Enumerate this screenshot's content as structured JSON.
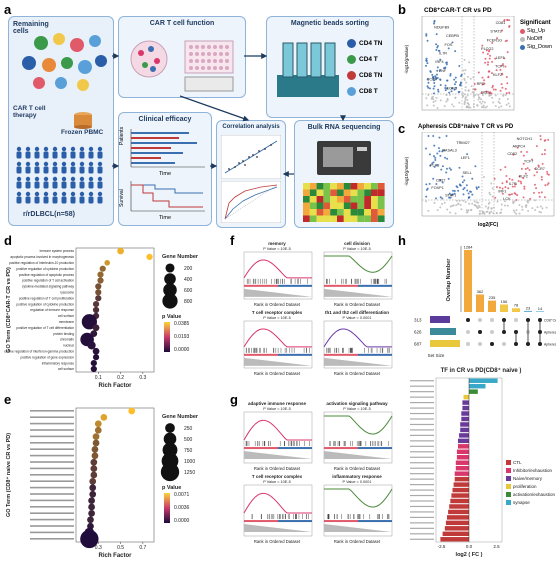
{
  "labels": {
    "a": "a",
    "b": "b",
    "c": "c",
    "d": "d",
    "e": "e",
    "f": "f",
    "g": "g",
    "h": "h"
  },
  "panel_a": {
    "remaining_cells": "Remaining cells",
    "car_t_therapy": "CAR T cell therapy",
    "frozen_pbmc": "Frozen PBMC",
    "cohort": "r/rDLBCL(n=58)",
    "car_t_function": "CAR T cell function",
    "magnetic_sorting": "Magnetic beads sorting",
    "clinical_efficacy": "Clinical efficacy",
    "correlation": "Correlation analysis",
    "bulk_rna": "Bulk RNA sequencing",
    "sorted_cells": [
      "CD4 TN",
      "CD4 T",
      "CD8 TN",
      "CD8 T"
    ],
    "time": "Time",
    "patients": "Patients",
    "survival": "Survival",
    "sorted_colors": [
      "#2a5ea8",
      "#3a9a4a",
      "#c03a3a",
      "#5aa0d8"
    ]
  },
  "panel_b": {
    "title": "CD8⁺CAR-T  CR vs PD",
    "ylabel": "-log10(pValue)",
    "legend_title": "Significant",
    "legend": [
      {
        "label": "Sig_Up",
        "color": "#e05a6a"
      },
      {
        "label": "NoDiff",
        "color": "#bbbbbb"
      },
      {
        "label": "Sig_Down",
        "color": "#3a6fb0"
      }
    ],
    "genes": [
      "CD81",
      "NDUFB9",
      "STAT3",
      "CEBPB",
      "FCER1G",
      "FOS",
      "PLCG2",
      "IL7R",
      "LEF1",
      "IRF4",
      "TCF7",
      "ZNF",
      "KLF2",
      "CCR7",
      "RPS",
      "EGR1",
      "SELL"
    ]
  },
  "panel_c": {
    "title": "Apheresis CD8⁺naive  T  CR vs PD",
    "ylabel": "-log10(pValue)",
    "xlabel": "log2(FC)",
    "genes": [
      "NOTCH1",
      "TRIM27",
      "ARPC4",
      "RASAL3",
      "CD52",
      "LEF1",
      "TCF7",
      "PLK3",
      "CCR7",
      "SELL",
      "KLF2",
      "CD27",
      "IL7R",
      "FOXP1",
      "IRF1",
      "STAT1",
      "LCK"
    ]
  },
  "panel_d": {
    "ylabel": "GO Term (CD8⁺CAR-T CR vs PD)",
    "xlabel": "Rich Factor",
    "size_title": "Gene Number",
    "size_ticks": [
      "200",
      "400",
      "600",
      "800"
    ],
    "color_title": "p Value",
    "color_ticks": [
      "0.0385",
      "0.0193",
      "0.0000"
    ],
    "terms": [
      "immune system process",
      "apoptotic process involved in morphogenesis",
      "positive regulation of interleukin-10 production",
      "positive regulation of cytokine production",
      "positive regulation of apoptotic process",
      "positive regulation of T cell activation",
      "cytokine-mediated signaling pathway",
      "lysosome",
      "positive regulation of T cell proliferation",
      "positive regulation of cytokine production",
      "regulation of immune response",
      "cell surface",
      "membrane",
      "positive regulation of T cell differentiation",
      "protein binding",
      "chromatin",
      "nucleus",
      "positive regulation of interferon-gamma production",
      "positive regulation of gene expression",
      "inflammatory response",
      "cell surface"
    ],
    "chart_data": {
      "type": "scatter",
      "xlim": [
        0,
        0.35
      ],
      "x_ticks": [
        "0.1",
        "0.2",
        "0.3"
      ],
      "points": [
        {
          "x": 0.2,
          "y": 21,
          "size": 80,
          "p": 0.035
        },
        {
          "x": 0.33,
          "y": 20,
          "size": 60,
          "p": 0.038
        },
        {
          "x": 0.14,
          "y": 19,
          "size": 40,
          "p": 0.03
        },
        {
          "x": 0.12,
          "y": 18,
          "size": 60,
          "p": 0.02
        },
        {
          "x": 0.11,
          "y": 17,
          "size": 60,
          "p": 0.02
        },
        {
          "x": 0.11,
          "y": 16,
          "size": 60,
          "p": 0.018
        },
        {
          "x": 0.1,
          "y": 15,
          "size": 60,
          "p": 0.015
        },
        {
          "x": 0.1,
          "y": 14,
          "size": 60,
          "p": 0.015
        },
        {
          "x": 0.1,
          "y": 13,
          "size": 60,
          "p": 0.01
        },
        {
          "x": 0.09,
          "y": 12,
          "size": 60,
          "p": 0.01
        },
        {
          "x": 0.09,
          "y": 11,
          "size": 60,
          "p": 0.008
        },
        {
          "x": 0.09,
          "y": 10,
          "size": 60,
          "p": 0.006
        },
        {
          "x": 0.06,
          "y": 9,
          "size": 800,
          "p": 0.001
        },
        {
          "x": 0.09,
          "y": 8,
          "size": 80,
          "p": 0.005
        },
        {
          "x": 0.08,
          "y": 7,
          "size": 80,
          "p": 0.003
        },
        {
          "x": 0.05,
          "y": 6,
          "size": 600,
          "p": 0.001
        },
        {
          "x": 0.07,
          "y": 5,
          "size": 150,
          "p": 0.002
        },
        {
          "x": 0.09,
          "y": 4,
          "size": 80,
          "p": 0.002
        },
        {
          "x": 0.09,
          "y": 3,
          "size": 60,
          "p": 0.001
        },
        {
          "x": 0.08,
          "y": 2,
          "size": 60,
          "p": 0.001
        },
        {
          "x": 0.08,
          "y": 1,
          "size": 60,
          "p": 0.001
        }
      ]
    }
  },
  "panel_e": {
    "ylabel": "GO Term (CD8⁺ naive CR vs PD)",
    "xlabel": "Rich Factor",
    "size_title": "Gene Number",
    "size_ticks": [
      "250",
      "500",
      "750",
      "1000",
      "1250"
    ],
    "color_title": "p Value",
    "color_ticks": [
      "0.0071",
      "0.0036",
      "0.0000"
    ],
    "chart_data": {
      "type": "scatter",
      "xlim": [
        0.1,
        0.8
      ],
      "x_ticks": [
        "0.3",
        "0.5",
        "0.7"
      ],
      "points": [
        {
          "x": 0.6,
          "y": 21,
          "size": 80,
          "p": 0.007
        },
        {
          "x": 0.35,
          "y": 20,
          "size": 80,
          "p": 0.006
        },
        {
          "x": 0.3,
          "y": 19,
          "size": 80,
          "p": 0.005
        },
        {
          "x": 0.3,
          "y": 18,
          "size": 80,
          "p": 0.004
        },
        {
          "x": 0.28,
          "y": 17,
          "size": 80,
          "p": 0.004
        },
        {
          "x": 0.28,
          "y": 16,
          "size": 80,
          "p": 0.003
        },
        {
          "x": 0.27,
          "y": 15,
          "size": 80,
          "p": 0.003
        },
        {
          "x": 0.27,
          "y": 14,
          "size": 80,
          "p": 0.003
        },
        {
          "x": 0.26,
          "y": 13,
          "size": 80,
          "p": 0.002
        },
        {
          "x": 0.26,
          "y": 12,
          "size": 80,
          "p": 0.002
        },
        {
          "x": 0.26,
          "y": 11,
          "size": 80,
          "p": 0.002
        },
        {
          "x": 0.25,
          "y": 10,
          "size": 80,
          "p": 0.002
        },
        {
          "x": 0.25,
          "y": 9,
          "size": 80,
          "p": 0.001
        },
        {
          "x": 0.25,
          "y": 8,
          "size": 80,
          "p": 0.001
        },
        {
          "x": 0.24,
          "y": 7,
          "size": 80,
          "p": 0.001
        },
        {
          "x": 0.24,
          "y": 6,
          "size": 80,
          "p": 0.001
        },
        {
          "x": 0.24,
          "y": 5,
          "size": 80,
          "p": 0.001
        },
        {
          "x": 0.23,
          "y": 4,
          "size": 80,
          "p": 0.001
        },
        {
          "x": 0.23,
          "y": 3,
          "size": 80,
          "p": 0.0005
        },
        {
          "x": 0.22,
          "y": 2,
          "size": 250,
          "p": 0.0003
        },
        {
          "x": 0.22,
          "y": 1,
          "size": 1250,
          "p": 0.0001
        }
      ]
    }
  },
  "panel_f": {
    "xlabel": "Rank in Ordered Dataset",
    "plots": [
      {
        "title": "memory",
        "p": "P Value = 10E-5",
        "color": "#d9366b"
      },
      {
        "title": "cell division",
        "p": "P Value = 10E-5",
        "color": "#4a8a3a"
      },
      {
        "title": "T cell receptor complex",
        "p": "P Value = 10E-5",
        "color": "#d9366b"
      },
      {
        "title": "th1 and th2 cell differentiation",
        "p": "P Value = 0.0001",
        "color": "#6a3aa8"
      }
    ]
  },
  "panel_g": {
    "xlabel": "Rank in Ordered Dataset",
    "plots": [
      {
        "title": "adaptive immune response",
        "p": "P Value = 10E-5",
        "color": "#d9366b"
      },
      {
        "title": "activation signaling pathway",
        "p": "P Value = 10E-5",
        "color": "#4a8a3a"
      },
      {
        "title": "T cell receptor complex",
        "p": "P Value = 10E-5",
        "color": "#d9366b"
      },
      {
        "title": "inflammatory response",
        "p": "P Value = 0.0001",
        "color": "#4a8a3a"
      }
    ]
  },
  "panel_h": {
    "upset_ylabel": "Overlap Number",
    "set_size_label": "Set Size",
    "bars": [
      1284,
      362,
      235,
      156,
      78,
      23,
      14
    ],
    "sets": [
      {
        "name": "CD8⁺CAR-T CR vs PD",
        "size": "313",
        "color": "#5a3a9a"
      },
      {
        "name": "Apheresis CD8⁺naive T CR vs PD",
        "size": "626",
        "color": "#3a8a9a"
      },
      {
        "name": "Apheresis CD8⁺CAR-T naive T CR vs PD",
        "size": "687",
        "color": "#e8c83a"
      }
    ],
    "tf_title": "TF in CR vs PD(CD8⁺ naive )",
    "tf_xlabel": "log2 ( FC )",
    "tf_xticks": [
      "-2.5",
      "0.0",
      "2.5"
    ],
    "tf_legend": [
      {
        "label": "CTL",
        "color": "#c03a3a"
      },
      {
        "label": "Inhibitor/exhaustion",
        "color": "#d9366b"
      },
      {
        "label": "Naive/memory",
        "color": "#6a3a9a"
      },
      {
        "label": "proliferation",
        "color": "#e8c83a"
      },
      {
        "label": "activation/exhaustion",
        "color": "#3a8a3a"
      },
      {
        "label": "synapse",
        "color": "#3aa8c8"
      }
    ],
    "tf_bars": [
      {
        "v": 2.6,
        "c": "#3aa8c8"
      },
      {
        "v": 1.5,
        "c": "#3aa8c8"
      },
      {
        "v": 0.8,
        "c": "#3a8a3a"
      },
      {
        "v": -0.5,
        "c": "#e8c83a"
      },
      {
        "v": -0.6,
        "c": "#6a3a9a"
      },
      {
        "v": -0.6,
        "c": "#6a3a9a"
      },
      {
        "v": -0.7,
        "c": "#6a3a9a"
      },
      {
        "v": -0.7,
        "c": "#6a3a9a"
      },
      {
        "v": -0.8,
        "c": "#6a3a9a"
      },
      {
        "v": -0.8,
        "c": "#6a3a9a"
      },
      {
        "v": -0.9,
        "c": "#6a3a9a"
      },
      {
        "v": -1.0,
        "c": "#6a3a9a"
      },
      {
        "v": -1.0,
        "c": "#d9366b"
      },
      {
        "v": -1.1,
        "c": "#d9366b"
      },
      {
        "v": -1.1,
        "c": "#d9366b"
      },
      {
        "v": -1.2,
        "c": "#d9366b"
      },
      {
        "v": -1.2,
        "c": "#d9366b"
      },
      {
        "v": -1.3,
        "c": "#d9366b"
      },
      {
        "v": -1.3,
        "c": "#c03a3a"
      },
      {
        "v": -1.4,
        "c": "#c03a3a"
      },
      {
        "v": -1.5,
        "c": "#c03a3a"
      },
      {
        "v": -1.6,
        "c": "#c03a3a"
      },
      {
        "v": -1.7,
        "c": "#c03a3a"
      },
      {
        "v": -1.8,
        "c": "#c03a3a"
      },
      {
        "v": -1.9,
        "c": "#c03a3a"
      },
      {
        "v": -2.0,
        "c": "#c03a3a"
      },
      {
        "v": -2.1,
        "c": "#c03a3a"
      },
      {
        "v": -2.2,
        "c": "#c03a3a"
      },
      {
        "v": -2.4,
        "c": "#c03a3a"
      },
      {
        "v": -2.6,
        "c": "#c03a3a"
      }
    ]
  }
}
